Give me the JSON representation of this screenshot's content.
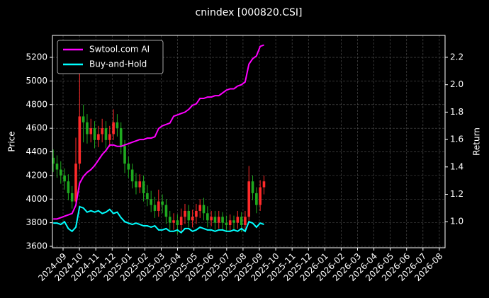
{
  "chart_data": {
    "type": "candlestick",
    "title": "cnindex [000820.CSI]",
    "y_label": "Price",
    "y2_label": "Return",
    "x": [
      -0.6,
      -0.37,
      -0.14,
      0.09,
      0.32,
      0.55,
      0.78,
      1.01,
      1.24,
      1.47,
      1.7,
      1.93,
      2.16,
      2.39,
      2.62,
      2.85,
      3.08,
      3.31,
      3.54,
      3.77,
      4.0,
      4.23,
      4.46,
      4.69,
      4.92,
      5.15,
      5.38,
      5.61,
      5.84,
      6.07,
      6.3,
      6.53,
      6.76,
      6.99,
      7.22,
      7.45,
      7.68,
      7.91,
      8.14,
      8.37,
      8.6,
      8.83,
      9.06,
      9.29,
      9.52,
      9.75,
      9.98,
      10.21,
      10.44,
      10.67,
      10.9,
      11.13,
      11.36,
      11.59,
      11.82,
      12.05,
      12.28
    ],
    "candles": {
      "open": [
        4350,
        4300,
        4250,
        4200,
        4150,
        4050,
        3980,
        4300,
        4700,
        4650,
        4550,
        4600,
        4500,
        4550,
        4600,
        4500,
        4550,
        4650,
        4600,
        4450,
        4300,
        4250,
        4150,
        4100,
        4150,
        4050,
        4000,
        3950,
        3900,
        3980,
        3950,
        3850,
        3800,
        3820,
        3780,
        3850,
        3900,
        3820,
        3850,
        3900,
        3950,
        3880,
        3820,
        3850,
        3800,
        3850,
        3800,
        3780,
        3820,
        3800,
        3850,
        3780,
        3850,
        4150,
        4050,
        3950,
        4100
      ],
      "high": [
        4420,
        4370,
        4320,
        4260,
        4210,
        4110,
        4520,
        5200,
        4800,
        4720,
        4680,
        4660,
        4620,
        4680,
        4660,
        4620,
        4760,
        4720,
        4650,
        4500,
        4360,
        4300,
        4220,
        4210,
        4200,
        4120,
        4070,
        4020,
        4080,
        4040,
        4000,
        3900,
        3880,
        3870,
        3920,
        3960,
        3950,
        3910,
        3960,
        4000,
        4010,
        3940,
        3900,
        3900,
        3900,
        3890,
        3860,
        3870,
        3860,
        3900,
        3890,
        3900,
        4280,
        4200,
        4100,
        4160,
        4200
      ],
      "low": [
        4230,
        4180,
        4130,
        4080,
        3990,
        3920,
        3950,
        4250,
        4480,
        4470,
        4480,
        4430,
        4440,
        4480,
        4430,
        4440,
        4500,
        4530,
        4380,
        4220,
        4180,
        4090,
        4040,
        4050,
        3980,
        3940,
        3890,
        3840,
        3850,
        3880,
        3790,
        3740,
        3740,
        3700,
        3720,
        3790,
        3760,
        3760,
        3790,
        3840,
        3820,
        3760,
        3770,
        3740,
        3750,
        3740,
        3720,
        3720,
        3740,
        3750,
        3720,
        3720,
        3800,
        3990,
        3880,
        3900,
        4040
      ],
      "close": [
        4300,
        4250,
        4200,
        4150,
        4050,
        3980,
        4300,
        4700,
        4650,
        4550,
        4600,
        4500,
        4550,
        4600,
        4500,
        4550,
        4650,
        4600,
        4450,
        4300,
        4250,
        4150,
        4100,
        4150,
        4050,
        4000,
        3950,
        3900,
        3980,
        3950,
        3850,
        3800,
        3820,
        3780,
        3850,
        3900,
        3820,
        3850,
        3900,
        3950,
        3880,
        3820,
        3850,
        3800,
        3850,
        3800,
        3780,
        3820,
        3800,
        3850,
        3780,
        3850,
        4150,
        4050,
        3950,
        4100,
        4150
      ],
      "up_color": "#ff2a2a",
      "down_color": "#1faa1f"
    },
    "series": [
      {
        "name": "Swtool.com AI",
        "color": "#ff00ff",
        "axis": "y2",
        "values": [
          1.02,
          1.02,
          1.03,
          1.04,
          1.05,
          1.06,
          1.12,
          1.28,
          1.33,
          1.36,
          1.38,
          1.41,
          1.45,
          1.49,
          1.52,
          1.56,
          1.56,
          1.55,
          1.55,
          1.56,
          1.57,
          1.58,
          1.59,
          1.6,
          1.6,
          1.61,
          1.61,
          1.62,
          1.68,
          1.7,
          1.71,
          1.72,
          1.77,
          1.78,
          1.79,
          1.8,
          1.82,
          1.85,
          1.86,
          1.9,
          1.9,
          1.91,
          1.91,
          1.92,
          1.92,
          1.94,
          1.96,
          1.97,
          1.97,
          1.99,
          2.0,
          2.02,
          2.15,
          2.19,
          2.21,
          2.28,
          2.29
        ]
      },
      {
        "name": "Buy-and-Hold",
        "color": "#00ffff",
        "axis": "y2",
        "values": [
          0.99,
          0.99,
          0.98,
          1.0,
          0.95,
          0.93,
          0.96,
          1.11,
          1.1,
          1.07,
          1.08,
          1.07,
          1.08,
          1.06,
          1.07,
          1.09,
          1.06,
          1.07,
          1.03,
          1.0,
          0.99,
          0.98,
          0.99,
          0.98,
          0.97,
          0.97,
          0.96,
          0.97,
          0.94,
          0.94,
          0.95,
          0.93,
          0.93,
          0.94,
          0.92,
          0.95,
          0.95,
          0.93,
          0.94,
          0.96,
          0.95,
          0.94,
          0.94,
          0.93,
          0.94,
          0.94,
          0.93,
          0.93,
          0.94,
          0.93,
          0.95,
          0.93,
          1.0,
          0.99,
          0.96,
          0.99,
          0.98
        ]
      }
    ],
    "xlim": [
      -0.65,
      23.35
    ],
    "xticks": [
      {
        "value": 0,
        "label": "2024-09"
      },
      {
        "value": 1,
        "label": "2024-10"
      },
      {
        "value": 2,
        "label": "2024-11"
      },
      {
        "value": 3,
        "label": "2024-12"
      },
      {
        "value": 4,
        "label": "2025-01"
      },
      {
        "value": 5,
        "label": "2025-02"
      },
      {
        "value": 6,
        "label": "2025-03"
      },
      {
        "value": 7,
        "label": "2025-04"
      },
      {
        "value": 8,
        "label": "2025-05"
      },
      {
        "value": 9,
        "label": "2025-06"
      },
      {
        "value": 10,
        "label": "2025-07"
      },
      {
        "value": 11,
        "label": "2025-08"
      },
      {
        "value": 12,
        "label": "2025-09"
      },
      {
        "value": 13,
        "label": "2025-10"
      },
      {
        "value": 14,
        "label": "2025-11"
      },
      {
        "value": 15,
        "label": "2025-12"
      },
      {
        "value": 16,
        "label": "2026-01"
      },
      {
        "value": 17,
        "label": "2026-02"
      },
      {
        "value": 18,
        "label": "2026-03"
      },
      {
        "value": 19,
        "label": "2026-04"
      },
      {
        "value": 20,
        "label": "2026-05"
      },
      {
        "value": 21,
        "label": "2026-06"
      },
      {
        "value": 22,
        "label": "2026-07"
      },
      {
        "value": 23,
        "label": "2026-08"
      }
    ],
    "ylim": [
      3588,
      5386
    ],
    "yticks": [
      3600,
      3800,
      4000,
      4200,
      4400,
      4600,
      4800,
      5000,
      5200
    ],
    "y2lim": [
      0.81,
      2.36
    ],
    "y2ticks": [
      {
        "value": 1,
        "label": "1.0"
      },
      1.2,
      1.4,
      1.6,
      1.8,
      {
        "value": 2,
        "label": "2.0"
      },
      2.2
    ],
    "grid": true,
    "legend": "upper left"
  }
}
